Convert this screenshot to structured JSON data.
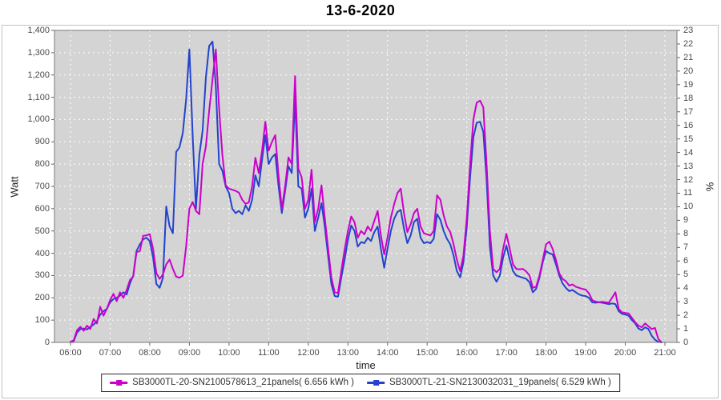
{
  "title": "13-6-2020",
  "colors": {
    "series1": "#cc00cc",
    "series2": "#2343cd",
    "plot_bg": "#d4d4d4",
    "grid": "#ffffff",
    "plot_border": "#7a7a7a",
    "tick": "#666666"
  },
  "chart_data": {
    "type": "line",
    "title": "13-6-2020",
    "xlabel": "time",
    "ylabel_left": "Watt",
    "ylabel_right": "%",
    "grid": true,
    "legend_position": "bottom",
    "y_left_range": [
      0,
      1400
    ],
    "y_right_range": [
      0,
      23
    ],
    "x_ticks": [
      "06:00",
      "07:00",
      "08:00",
      "09:00",
      "10:00",
      "11:00",
      "12:00",
      "13:00",
      "14:00",
      "15:00",
      "16:00",
      "17:00",
      "18:00",
      "19:00",
      "20:00",
      "21:00"
    ],
    "y_left_ticks": [
      "0",
      "100",
      "200",
      "300",
      "400",
      "500",
      "600",
      "700",
      "800",
      "900",
      "1,000",
      "1,100",
      "1,200",
      "1,300",
      "1,400"
    ],
    "y_right_ticks": [
      "0",
      "1",
      "2",
      "3",
      "4",
      "5",
      "6",
      "7",
      "8",
      "9",
      "10",
      "11",
      "12",
      "13",
      "14",
      "15",
      "16",
      "17",
      "18",
      "19",
      "20",
      "21",
      "22",
      "23"
    ],
    "time_start": "06:00",
    "step_minutes": 5,
    "series": [
      {
        "name": "SB3000TL-20-SN2100578613_21panels( 6.656 kWh )",
        "color": "#cc00cc",
        "values": [
          2,
          10,
          55,
          70,
          52,
          75,
          60,
          105,
          85,
          160,
          120,
          150,
          190,
          218,
          185,
          225,
          200,
          235,
          280,
          295,
          405,
          410,
          478,
          480,
          486,
          420,
          310,
          285,
          305,
          350,
          372,
          330,
          295,
          290,
          300,
          430,
          600,
          630,
          590,
          575,
          800,
          880,
          1040,
          1180,
          1315,
          1050,
          840,
          705,
          690,
          685,
          680,
          672,
          640,
          622,
          628,
          700,
          828,
          760,
          860,
          990,
          860,
          900,
          930,
          750,
          600,
          700,
          830,
          800,
          1195,
          780,
          740,
          600,
          640,
          775,
          540,
          600,
          705,
          560,
          424,
          290,
          225,
          222,
          320,
          415,
          500,
          565,
          540,
          470,
          500,
          485,
          520,
          500,
          545,
          590,
          480,
          395,
          470,
          560,
          620,
          670,
          690,
          580,
          495,
          530,
          580,
          600,
          520,
          490,
          485,
          480,
          500,
          660,
          640,
          570,
          520,
          495,
          440,
          370,
          320,
          390,
          560,
          800,
          1000,
          1075,
          1085,
          1055,
          800,
          500,
          330,
          315,
          330,
          420,
          488,
          420,
          350,
          330,
          328,
          330,
          318,
          300,
          245,
          250,
          300,
          370,
          440,
          452,
          420,
          370,
          310,
          285,
          275,
          255,
          260,
          250,
          245,
          240,
          237,
          220,
          190,
          183,
          180,
          182,
          180,
          178,
          200,
          225,
          150,
          135,
          132,
          130,
          110,
          90,
          75,
          68,
          85,
          72,
          60,
          65,
          15,
          0
        ]
      },
      {
        "name": "SB3000TL-21-SN2130032031_19panels( 6.529 kWh )",
        "color": "#2343cd",
        "values": [
          2,
          6,
          45,
          60,
          62,
          58,
          70,
          80,
          95,
          125,
          140,
          150,
          180,
          195,
          200,
          210,
          225,
          215,
          265,
          300,
          410,
          440,
          462,
          470,
          455,
          380,
          262,
          245,
          290,
          610,
          520,
          490,
          855,
          875,
          940,
          1090,
          1315,
          930,
          600,
          840,
          950,
          1190,
          1330,
          1350,
          1150,
          800,
          770,
          700,
          670,
          600,
          580,
          590,
          575,
          615,
          590,
          640,
          750,
          700,
          820,
          930,
          800,
          830,
          845,
          700,
          580,
          680,
          790,
          760,
          1095,
          700,
          690,
          560,
          600,
          690,
          500,
          560,
          625,
          520,
          390,
          260,
          208,
          205,
          290,
          370,
          460,
          525,
          500,
          430,
          450,
          445,
          470,
          455,
          495,
          520,
          420,
          335,
          420,
          500,
          555,
          585,
          595,
          510,
          445,
          480,
          540,
          555,
          470,
          445,
          450,
          445,
          465,
          575,
          550,
          500,
          465,
          440,
          390,
          320,
          292,
          360,
          520,
          740,
          920,
          985,
          990,
          945,
          730,
          430,
          300,
          272,
          300,
          380,
          435,
          370,
          320,
          300,
          295,
          290,
          285,
          270,
          225,
          240,
          290,
          360,
          410,
          400,
          395,
          350,
          300,
          265,
          245,
          230,
          235,
          225,
          215,
          210,
          208,
          200,
          180,
          178,
          180,
          178,
          175,
          172,
          175,
          172,
          140,
          128,
          125,
          120,
          100,
          85,
          62,
          55,
          68,
          60,
          30,
          12,
          2,
          0
        ]
      }
    ]
  }
}
